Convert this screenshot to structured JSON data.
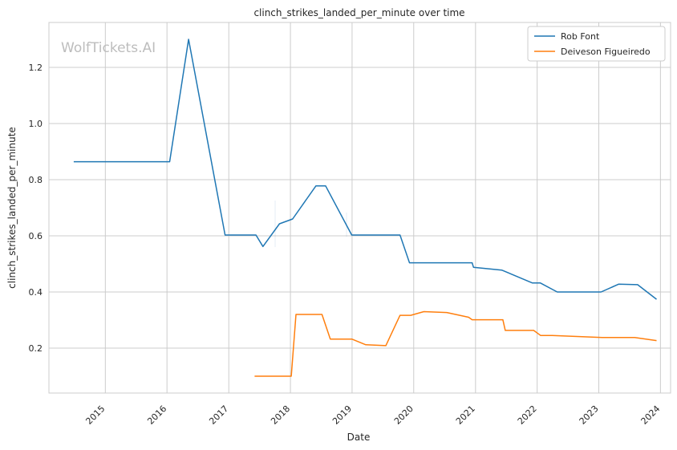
{
  "chart_data": {
    "type": "line",
    "title": "clinch_strikes_landed_per_minute over time",
    "xlabel": "Date",
    "ylabel": "clinch_strikes_landed_per_minute",
    "xlim": [
      "2014-02-01",
      "2024-03-01"
    ],
    "ylim": [
      0.04,
      1.36
    ],
    "x_ticks": [
      "2015",
      "2016",
      "2017",
      "2018",
      "2019",
      "2020",
      "2021",
      "2022",
      "2023",
      "2024"
    ],
    "y_ticks": [
      "0.2",
      "0.4",
      "0.6",
      "0.8",
      "1.0",
      "1.2"
    ],
    "grid": true,
    "legend_position": "top-right",
    "watermark": "WolfTickets.AI",
    "series": [
      {
        "name": "Rob Font",
        "color": "#1f77b4",
        "points": [
          [
            "2014-06-28",
            0.864
          ],
          [
            "2016-01-17",
            0.864
          ],
          [
            "2016-05-08",
            1.3
          ],
          [
            "2016-12-10",
            0.603
          ],
          [
            "2017-06-11",
            0.603
          ],
          [
            "2017-07-22",
            0.562
          ],
          [
            "2017-10-28",
            0.643
          ],
          [
            "2018-01-14",
            0.66
          ],
          [
            "2018-06-01",
            0.778
          ],
          [
            "2018-07-28",
            0.778
          ],
          [
            "2018-12-30",
            0.603
          ],
          [
            "2019-10-12",
            0.603
          ],
          [
            "2019-12-07",
            0.504
          ],
          [
            "2020-12-12",
            0.504
          ],
          [
            "2020-12-20",
            0.488
          ],
          [
            "2021-06-05",
            0.478
          ],
          [
            "2021-12-04",
            0.432
          ],
          [
            "2022-01-20",
            0.432
          ],
          [
            "2022-04-30",
            0.4
          ],
          [
            "2023-01-14",
            0.4
          ],
          [
            "2023-04-29",
            0.428
          ],
          [
            "2023-08-19",
            0.426
          ],
          [
            "2023-12-09",
            0.374
          ]
        ]
      },
      {
        "name": "Deiveson Figueiredo",
        "color": "#ff7f0e",
        "points": [
          [
            "2017-06-03",
            0.1
          ],
          [
            "2018-01-06",
            0.1
          ],
          [
            "2018-02-03",
            0.32
          ],
          [
            "2018-07-07",
            0.32
          ],
          [
            "2018-08-25",
            0.232
          ],
          [
            "2019-01-01",
            0.232
          ],
          [
            "2019-03-23",
            0.212
          ],
          [
            "2019-07-20",
            0.209
          ],
          [
            "2019-10-12",
            0.317
          ],
          [
            "2019-12-14",
            0.317
          ],
          [
            "2020-03-01",
            0.33
          ],
          [
            "2020-07-15",
            0.327
          ],
          [
            "2020-11-21",
            0.31
          ],
          [
            "2020-12-12",
            0.301
          ],
          [
            "2021-06-12",
            0.301
          ],
          [
            "2021-06-26",
            0.263
          ],
          [
            "2021-12-11",
            0.263
          ],
          [
            "2022-01-22",
            0.245
          ],
          [
            "2022-04-01",
            0.245
          ],
          [
            "2023-01-21",
            0.238
          ],
          [
            "2023-08-01",
            0.238
          ],
          [
            "2023-12-09",
            0.227
          ]
        ]
      }
    ]
  }
}
